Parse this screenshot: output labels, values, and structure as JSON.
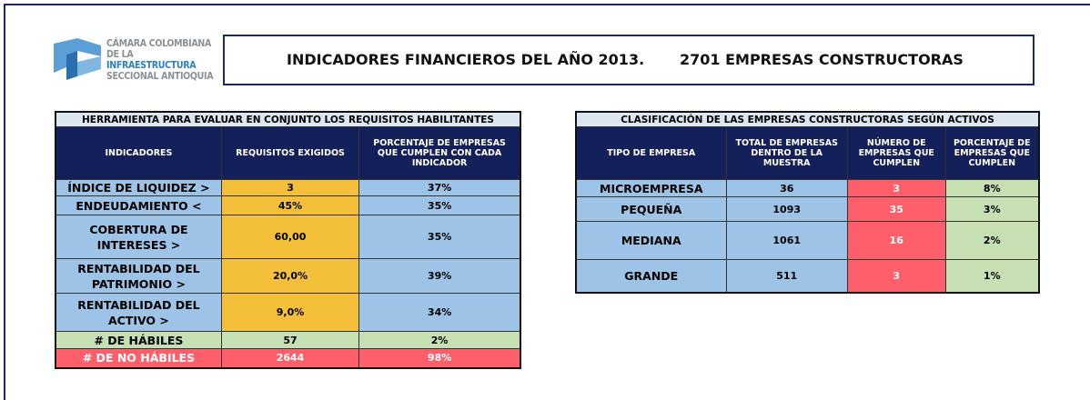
{
  "logo": {
    "line1": "CÁMARA COLOMBIANA",
    "line2a": "DE LA",
    "line2b": "INFRAESTRUCTURA",
    "line3": "SECCIONAL ANTIOQUIA"
  },
  "header": {
    "title": "INDICADORES FINANCIEROS DEL AÑO 2013.",
    "subtitle": "2701 EMPRESAS CONSTRUCTORAS"
  },
  "left_table": {
    "caption": "HERRAMIENTA PARA EVALUAR EN CONJUNTO LOS REQUISITOS HABILITANTES",
    "columns": [
      "INDICADORES",
      "REQUISITOS EXIGIDOS",
      "PORCENTAJE DE EMPRESAS QUE CUMPLEN CON CADA INDICADOR"
    ],
    "rows": [
      [
        "ÍNDICE DE LIQUIDEZ >",
        "3",
        "37%"
      ],
      [
        "ENDEUDAMIENTO <",
        "45%",
        "35%"
      ],
      [
        "COBERTURA DE INTERESES >",
        "60,00",
        "35%"
      ],
      [
        "RENTABILIDAD DEL PATRIMONIO  >",
        "20,0%",
        "39%"
      ],
      [
        "RENTABILIDAD DEL ACTIVO >",
        "9,0%",
        "34%"
      ],
      [
        "# DE HÁBILES",
        "57",
        "2%"
      ],
      [
        "# DE NO HÁBILES",
        "2644",
        "98%"
      ]
    ]
  },
  "right_table": {
    "caption": "CLASIFICACIÓN DE LAS EMPRESAS CONSTRUCTORAS SEGÚN ACTIVOS",
    "columns": [
      "TIPO DE EMPRESA",
      "TOTAL DE EMPRESAS DENTRO DE LA MUESTRA",
      "NÚMERO DE EMPRESAS QUE CUMPLEN",
      "PORCENTAJE DE EMPRESAS QUE CUMPLEN"
    ],
    "rows": [
      [
        "MICROEMPRESA",
        "36",
        "3",
        "8%"
      ],
      [
        "PEQUEÑA",
        "1093",
        "35",
        "3%"
      ],
      [
        "MEDIANA",
        "1061",
        "16",
        "2%"
      ],
      [
        "GRANDE",
        "511",
        "3",
        "1%"
      ]
    ]
  }
}
